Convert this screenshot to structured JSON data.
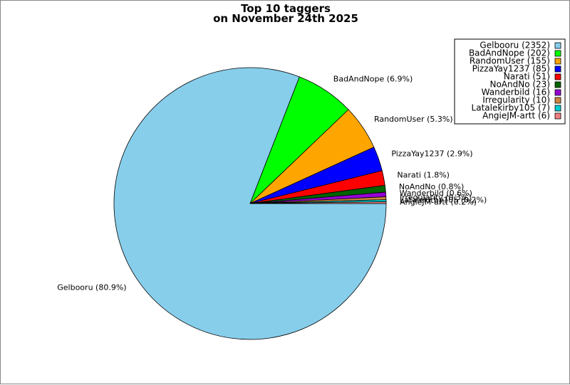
{
  "chart_data": {
    "type": "pie",
    "title": "Top 10 taggers",
    "subtitle": "on November 24th 2025",
    "series": [
      {
        "name": "Gelbooru",
        "value": 2352,
        "percent_label": "80.9%",
        "color": "#87ceeb"
      },
      {
        "name": "BadAndNope",
        "value": 202,
        "percent_label": "6.9%",
        "color": "#00ff00"
      },
      {
        "name": "RandomUser",
        "value": 155,
        "percent_label": "5.3%",
        "color": "#ffa500"
      },
      {
        "name": "PizzaYay1237",
        "value": 85,
        "percent_label": "2.9%",
        "color": "#0000ff"
      },
      {
        "name": "Narati",
        "value": 51,
        "percent_label": "1.8%",
        "color": "#ff0000"
      },
      {
        "name": "NoAndNo",
        "value": 23,
        "percent_label": "0.8%",
        "color": "#006400"
      },
      {
        "name": "Wanderbild",
        "value": 16,
        "percent_label": "0.6%",
        "color": "#9400d3"
      },
      {
        "name": "Irregularity",
        "value": 10,
        "percent_label": "0.3%",
        "color": "#cd853f"
      },
      {
        "name": "Latalekirby105",
        "value": 7,
        "percent_label": "0.2%",
        "color": "#00ced1"
      },
      {
        "name": "AngieJM-artt",
        "value": 6,
        "percent_label": "0.2%",
        "color": "#f08080"
      }
    ],
    "legend_position": "top-right"
  }
}
